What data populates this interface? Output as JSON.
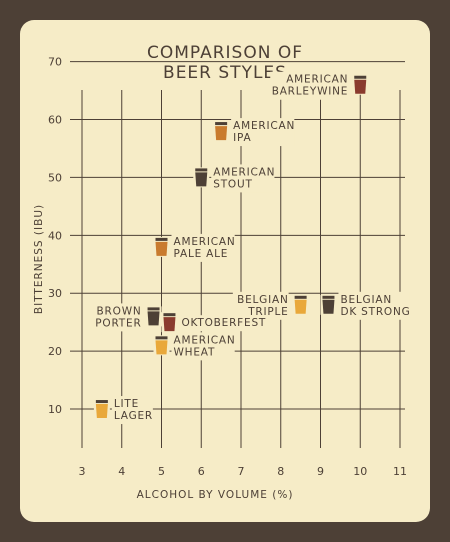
{
  "chart_data": {
    "type": "scatter",
    "title": [
      "COMPARISON OF",
      "BEER STYLES"
    ],
    "xlabel": "ALCOHOL BY VOLUME (%)",
    "ylabel": "BITTERNESS (IBU)",
    "xlim": [
      3,
      11
    ],
    "ylim": [
      5,
      72
    ],
    "x_ticks": [
      "3",
      "4",
      "5",
      "6",
      "7",
      "8",
      "9",
      "10",
      "11"
    ],
    "y_ticks": [
      "10",
      "20",
      "30",
      "40",
      "50",
      "60",
      "70"
    ],
    "grid": true,
    "points": [
      {
        "label": [
          "AMERICAN",
          "BARLEYWINE"
        ],
        "x": 10,
        "y": 66,
        "color": "#8a3b2e",
        "label_side": "left"
      },
      {
        "label": [
          "AMERICAN",
          "IPA"
        ],
        "x": 6.5,
        "y": 58,
        "color": "#c97b2e",
        "label_side": "right"
      },
      {
        "label": [
          "AMERICAN",
          "STOUT"
        ],
        "x": 6,
        "y": 50,
        "color": "#4d4036",
        "label_side": "right"
      },
      {
        "label": [
          "AMERICAN",
          "PALE ALE"
        ],
        "x": 5,
        "y": 38,
        "color": "#c97b2e",
        "label_side": "right"
      },
      {
        "label": [
          "BELGIAN",
          "TRIPLE"
        ],
        "x": 8.5,
        "y": 28,
        "color": "#e9a83a",
        "label_side": "left"
      },
      {
        "label": [
          "BELGIAN",
          "DK STRONG"
        ],
        "x": 9.2,
        "y": 28,
        "color": "#4d4036",
        "label_side": "right"
      },
      {
        "label": [
          "BROWN",
          "PORTER"
        ],
        "x": 4.8,
        "y": 26,
        "color": "#4d4036",
        "label_side": "left"
      },
      {
        "label": [
          "OKTOBERFEST"
        ],
        "x": 5.2,
        "y": 25,
        "color": "#8a3b2e",
        "label_side": "right"
      },
      {
        "label": [
          "AMERICAN",
          "WHEAT"
        ],
        "x": 5,
        "y": 21,
        "color": "#e9a83a",
        "label_side": "right"
      },
      {
        "label": [
          "LITE",
          "LAGER"
        ],
        "x": 3.5,
        "y": 10,
        "color": "#e9a83a",
        "label_side": "right"
      }
    ]
  }
}
